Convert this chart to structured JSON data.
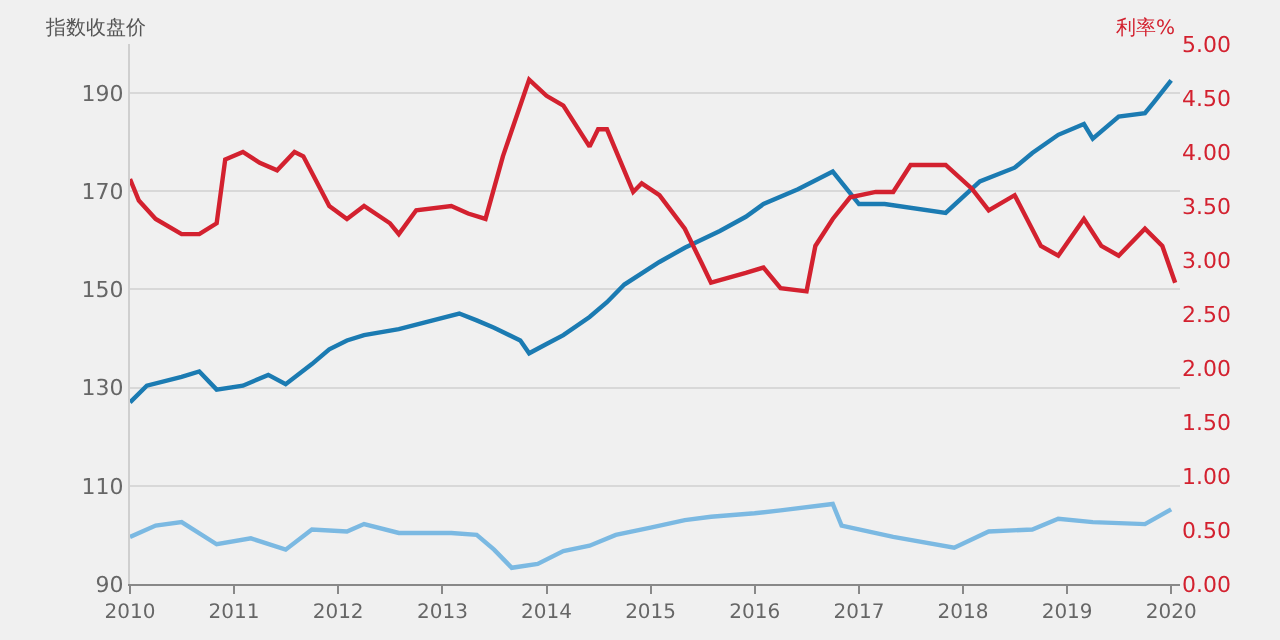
{
  "chart_data": {
    "type": "line",
    "ylabel": "指数收盘价",
    "y2label": "利率%",
    "xlim": [
      "2010-01",
      "2020-02"
    ],
    "xticks": [
      "2010",
      "2011",
      "2012",
      "2013",
      "2014",
      "2015",
      "2016",
      "2017",
      "2018",
      "2019",
      "2020"
    ],
    "ylim": [
      90,
      200
    ],
    "yticks": [
      90,
      110,
      130,
      150,
      170,
      190
    ],
    "y2lim": [
      0,
      5
    ],
    "y2ticks": [
      {
        "value": 0,
        "label": "0.00"
      },
      {
        "value": 0.5,
        "label": "0.50"
      },
      {
        "value": 1,
        "label": "1.00"
      },
      {
        "value": 1.5,
        "label": "1.50"
      },
      {
        "value": 2,
        "label": "2.00"
      },
      {
        "value": 2.5,
        "label": "2.50"
      },
      {
        "value": 3,
        "label": "3.00"
      },
      {
        "value": 3.5,
        "label": "3.50"
      },
      {
        "value": 4,
        "label": "4.00"
      },
      {
        "value": 4.5,
        "label": "4.50"
      },
      {
        "value": 5,
        "label": "5.00"
      }
    ],
    "grid": "y",
    "marker": "none",
    "line_style": "solid",
    "series": [
      {
        "color": "#1b7bb2",
        "x": [
          "2010-01",
          "2010-03",
          "2010-07",
          "2010-09",
          "2010-11",
          "2011-02",
          "2011-05",
          "2011-07",
          "2011-10",
          "2011-12",
          "2012-02",
          "2012-04",
          "2012-08",
          "2012-11",
          "2013-03",
          "2013-05",
          "2013-07",
          "2013-10",
          "2013-11",
          "2014-01",
          "2014-03",
          "2014-06",
          "2014-08",
          "2014-10",
          "2015-02",
          "2015-05",
          "2015-09",
          "2015-12",
          "2016-02",
          "2016-06",
          "2016-10",
          "2017-01",
          "2017-04",
          "2017-11",
          "2018-03",
          "2018-07",
          "2018-09",
          "2018-12",
          "2019-03",
          "2019-04",
          "2019-07",
          "2019-10",
          "2019-11",
          "2020-01"
        ],
        "values": [
          127,
          130.4,
          132.2,
          133.3,
          129.6,
          130.4,
          132.6,
          130.7,
          134.8,
          137.8,
          139.6,
          140.7,
          141.9,
          143.3,
          145.1,
          143.7,
          142.2,
          139.6,
          137,
          138.9,
          140.7,
          144.4,
          147.4,
          151,
          155.6,
          158.5,
          161.9,
          164.8,
          167.4,
          170.4,
          174,
          167.4,
          167.4,
          165.6,
          172,
          174.8,
          177.8,
          181.5,
          183.7,
          180.7,
          185.2,
          185.9,
          188.1,
          192.6
        ]
      },
      {
        "color": "#d3212f",
        "axis": "y2",
        "x": [
          "2010-01",
          "2010-02",
          "2010-04",
          "2010-07",
          "2010-09",
          "2010-11",
          "2010-12",
          "2011-02",
          "2011-04",
          "2011-06",
          "2011-08",
          "2011-09",
          "2011-12",
          "2012-02",
          "2012-04",
          "2012-07",
          "2012-08",
          "2012-10",
          "2013-02",
          "2013-04",
          "2013-06",
          "2013-08",
          "2013-11",
          "2014-01",
          "2014-03",
          "2014-06",
          "2014-07",
          "2014-08",
          "2014-11",
          "2014-12",
          "2015-02",
          "2015-05",
          "2015-07",
          "2015-08",
          "2015-12",
          "2016-02",
          "2016-04",
          "2016-07",
          "2016-08",
          "2016-10",
          "2016-12",
          "2017-03",
          "2017-05",
          "2017-07",
          "2017-11",
          "2018-02",
          "2018-04",
          "2018-07",
          "2018-10",
          "2018-12",
          "2019-03",
          "2019-05",
          "2019-07",
          "2019-10",
          "2019-12",
          "2020-01-15"
        ],
        "values": [
          3.75,
          3.55,
          3.38,
          3.24,
          3.24,
          3.34,
          3.93,
          4,
          3.9,
          3.83,
          4,
          3.96,
          3.5,
          3.38,
          3.5,
          3.34,
          3.24,
          3.46,
          3.5,
          3.43,
          3.38,
          3.96,
          4.67,
          4.52,
          4.43,
          4.05,
          4.21,
          4.21,
          3.63,
          3.71,
          3.6,
          3.29,
          2.96,
          2.79,
          2.88,
          2.93,
          2.74,
          2.71,
          3.13,
          3.38,
          3.58,
          3.63,
          3.63,
          3.88,
          3.88,
          3.66,
          3.46,
          3.6,
          3.13,
          3.04,
          3.38,
          3.13,
          3.04,
          3.29,
          3.13,
          2.79
        ]
      },
      {
        "color": "#7bb9e2",
        "x": [
          "2010-01",
          "2010-04",
          "2010-07",
          "2010-11",
          "2011-03",
          "2011-07",
          "2011-10",
          "2012-02",
          "2012-04",
          "2012-08",
          "2013-02",
          "2013-05",
          "2013-07",
          "2013-09",
          "2013-12",
          "2014-03",
          "2014-06",
          "2014-09",
          "2015-01",
          "2015-05",
          "2015-08",
          "2016-01",
          "2016-04",
          "2016-10",
          "2016-11",
          "2017-05",
          "2017-12",
          "2018-04",
          "2018-09",
          "2018-12",
          "2019-04",
          "2019-10",
          "2020-01"
        ],
        "values": [
          99.6,
          101.9,
          102.6,
          98.1,
          99.3,
          97,
          101.1,
          100.7,
          102.2,
          100.4,
          100.4,
          100,
          97,
          93.3,
          94.1,
          96.7,
          97.8,
          100,
          101.5,
          103,
          103.7,
          104.4,
          105,
          106.3,
          101.9,
          99.6,
          97.4,
          100.7,
          101.1,
          103.3,
          102.6,
          102.2,
          105.2
        ]
      }
    ]
  }
}
